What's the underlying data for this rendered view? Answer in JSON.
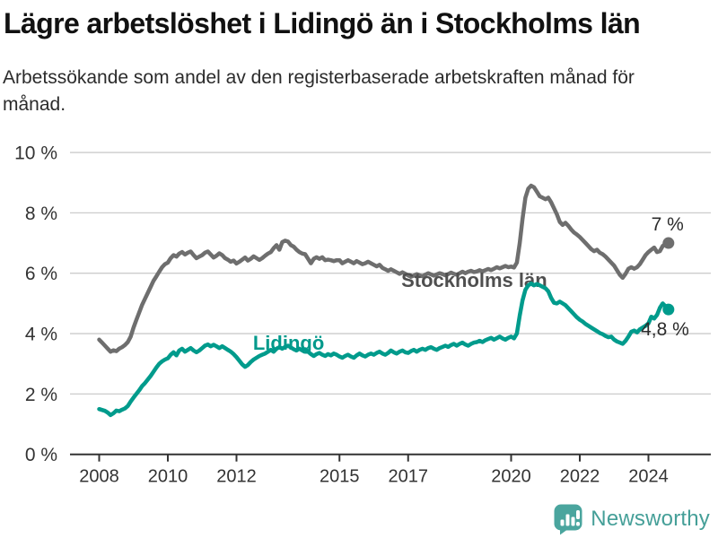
{
  "header": {
    "title": "Lägre arbetslöshet i Lidingö än i Stockholms län",
    "subtitle": "Arbetssökande som andel av den registerbaserade arbetskraften månad för månad."
  },
  "chart_data": {
    "type": "line",
    "unit": "%",
    "x_start_year": 2008,
    "points_per_year": 12,
    "ylim": [
      0,
      10
    ],
    "grid": true,
    "colors": {
      "grid": "#cccccc",
      "axis": "#333333",
      "tick_text": "#333333",
      "value_label_text": "#2b2b2b"
    },
    "y_ticks": [
      {
        "value": 10,
        "label": "10 %"
      },
      {
        "value": 8,
        "label": "8 %"
      },
      {
        "value": 6,
        "label": "6 %"
      },
      {
        "value": 4,
        "label": "4 %"
      },
      {
        "value": 2,
        "label": "2 %"
      },
      {
        "value": 0,
        "label": "0 %"
      }
    ],
    "x_ticks": [
      {
        "year": 2008,
        "label": "2008"
      },
      {
        "year": 2010,
        "label": "2010"
      },
      {
        "year": 2012,
        "label": "2012"
      },
      {
        "year": 2015,
        "label": "2015"
      },
      {
        "year": 2017,
        "label": "2017"
      },
      {
        "year": 2020,
        "label": "2020"
      },
      {
        "year": 2022,
        "label": "2022"
      },
      {
        "year": 2024,
        "label": "2024"
      }
    ],
    "series": [
      {
        "name": "Stockholms län",
        "slug": "stockholms-lan",
        "color": "#6e6e6e",
        "label_color": "#4f4f4f",
        "label_at": {
          "year": 2016.8,
          "value": 5.55
        },
        "end_label": "7 %",
        "values": [
          3.8,
          3.7,
          3.6,
          3.5,
          3.4,
          3.45,
          3.42,
          3.5,
          3.55,
          3.62,
          3.72,
          3.9,
          4.2,
          4.45,
          4.7,
          4.95,
          5.15,
          5.35,
          5.55,
          5.75,
          5.9,
          6.05,
          6.2,
          6.3,
          6.35,
          6.5,
          6.6,
          6.55,
          6.65,
          6.7,
          6.62,
          6.68,
          6.72,
          6.6,
          6.5,
          6.55,
          6.6,
          6.68,
          6.72,
          6.62,
          6.52,
          6.58,
          6.66,
          6.6,
          6.5,
          6.45,
          6.38,
          6.42,
          6.32,
          6.38,
          6.45,
          6.52,
          6.42,
          6.48,
          6.56,
          6.5,
          6.44,
          6.5,
          6.58,
          6.65,
          6.7,
          6.83,
          6.93,
          6.78,
          7.03,
          7.08,
          7.05,
          6.93,
          6.88,
          6.78,
          6.7,
          6.65,
          6.63,
          6.48,
          6.33,
          6.48,
          6.53,
          6.48,
          6.53,
          6.43,
          6.45,
          6.43,
          6.4,
          6.43,
          6.43,
          6.33,
          6.38,
          6.43,
          6.38,
          6.33,
          6.4,
          6.35,
          6.3,
          6.33,
          6.38,
          6.33,
          6.28,
          6.23,
          6.28,
          6.18,
          6.13,
          6.08,
          6.13,
          6.08,
          6.03,
          5.98,
          6.03,
          5.98,
          5.93,
          5.88,
          5.92,
          5.97,
          5.93,
          5.9,
          5.95,
          6.0,
          5.96,
          5.92,
          5.96,
          6.0,
          5.97,
          5.93,
          5.97,
          6.02,
          5.98,
          5.95,
          6.0,
          6.05,
          6.0,
          6.05,
          6.08,
          6.04,
          6.06,
          6.1,
          6.06,
          6.1,
          6.14,
          6.1,
          6.15,
          6.2,
          6.16,
          6.2,
          6.24,
          6.2,
          6.22,
          6.19,
          6.35,
          7.0,
          7.8,
          8.5,
          8.8,
          8.9,
          8.85,
          8.7,
          8.55,
          8.5,
          8.45,
          8.5,
          8.35,
          8.15,
          7.95,
          7.7,
          7.6,
          7.67,
          7.57,
          7.45,
          7.35,
          7.28,
          7.2,
          7.1,
          7.0,
          6.9,
          6.8,
          6.73,
          6.78,
          6.68,
          6.63,
          6.55,
          6.45,
          6.35,
          6.25,
          6.1,
          5.95,
          5.85,
          5.98,
          6.15,
          6.2,
          6.15,
          6.2,
          6.3,
          6.45,
          6.6,
          6.7,
          6.78,
          6.85,
          6.7,
          6.73,
          6.9,
          6.98,
          7.0
        ]
      },
      {
        "name": "Lidingö",
        "slug": "lidingo",
        "color": "#009b8c",
        "label_color": "#00998b",
        "label_at": {
          "year": 2012.48,
          "value": 3.47
        },
        "end_label": "4,8 %",
        "values": [
          1.5,
          1.47,
          1.44,
          1.38,
          1.3,
          1.36,
          1.45,
          1.43,
          1.48,
          1.52,
          1.6,
          1.75,
          1.88,
          2.0,
          2.12,
          2.26,
          2.36,
          2.48,
          2.6,
          2.74,
          2.88,
          3.0,
          3.08,
          3.14,
          3.18,
          3.3,
          3.38,
          3.28,
          3.44,
          3.5,
          3.4,
          3.46,
          3.52,
          3.44,
          3.38,
          3.44,
          3.52,
          3.6,
          3.64,
          3.58,
          3.63,
          3.58,
          3.52,
          3.58,
          3.52,
          3.46,
          3.4,
          3.32,
          3.22,
          3.1,
          2.98,
          2.9,
          2.96,
          3.06,
          3.14,
          3.2,
          3.26,
          3.3,
          3.34,
          3.4,
          3.46,
          3.4,
          3.5,
          3.55,
          3.5,
          3.56,
          3.6,
          3.54,
          3.48,
          3.44,
          3.5,
          3.44,
          3.48,
          3.4,
          3.32,
          3.26,
          3.32,
          3.36,
          3.3,
          3.26,
          3.32,
          3.28,
          3.34,
          3.3,
          3.24,
          3.2,
          3.26,
          3.3,
          3.24,
          3.2,
          3.28,
          3.34,
          3.28,
          3.24,
          3.3,
          3.34,
          3.3,
          3.36,
          3.4,
          3.34,
          3.3,
          3.36,
          3.44,
          3.38,
          3.34,
          3.4,
          3.44,
          3.38,
          3.36,
          3.42,
          3.46,
          3.4,
          3.46,
          3.5,
          3.46,
          3.52,
          3.55,
          3.5,
          3.46,
          3.52,
          3.56,
          3.6,
          3.56,
          3.62,
          3.66,
          3.6,
          3.66,
          3.7,
          3.64,
          3.6,
          3.66,
          3.7,
          3.72,
          3.76,
          3.72,
          3.78,
          3.82,
          3.86,
          3.8,
          3.85,
          3.9,
          3.84,
          3.8,
          3.86,
          3.9,
          3.84,
          4.0,
          4.6,
          5.1,
          5.45,
          5.6,
          5.66,
          5.6,
          5.64,
          5.6,
          5.55,
          5.5,
          5.4,
          5.18,
          5.02,
          5.0,
          5.06,
          5.0,
          4.94,
          4.84,
          4.74,
          4.64,
          4.54,
          4.46,
          4.4,
          4.32,
          4.26,
          4.2,
          4.14,
          4.08,
          4.02,
          3.98,
          3.92,
          3.88,
          3.9,
          3.8,
          3.74,
          3.7,
          3.66,
          3.76,
          3.9,
          4.06,
          4.1,
          4.04,
          4.14,
          4.2,
          4.26,
          4.34,
          4.56,
          4.5,
          4.62,
          4.85,
          5.0,
          4.9,
          4.8
        ]
      }
    ]
  },
  "branding": {
    "logo_text": "Newsworthy",
    "logo_icon": "bar-chart-speech-bubble-icon",
    "logo_color": "#4aa59e"
  }
}
